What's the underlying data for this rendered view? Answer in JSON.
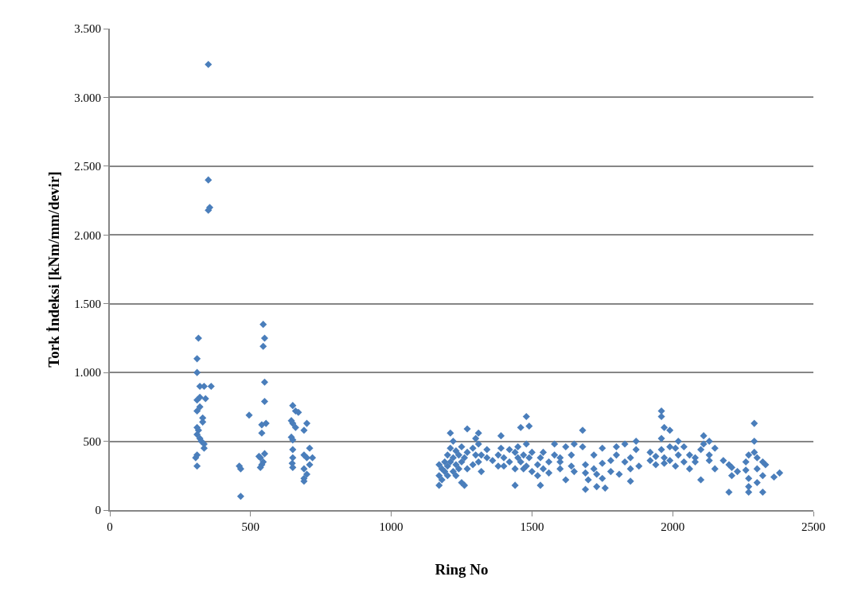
{
  "chart_data": {
    "type": "scatter",
    "xlabel": "Ring No",
    "ylabel": "Tork İndeksi [kNm/mm/devir]",
    "xlim": [
      0,
      2500
    ],
    "xticks": [
      0,
      500,
      1000,
      1500,
      2000,
      2500
    ],
    "ylim": [
      0,
      3500
    ],
    "yticks": [
      0,
      500,
      {
        "value": 1000,
        "label": "1.000"
      },
      {
        "value": 1500,
        "label": "1.500"
      },
      {
        "value": 2000,
        "label": "2.000"
      },
      {
        "value": 2500,
        "label": "2.500"
      },
      {
        "value": 3000,
        "label": "3.000"
      },
      {
        "value": 3500,
        "label": "3.500"
      }
    ],
    "grid": "y",
    "marker": "diamond",
    "series": [
      {
        "color": "#4a7ebb",
        "x": [
          350,
          350,
          355,
          350,
          315,
          310,
          310,
          320,
          335,
          360,
          320,
          310,
          340,
          320,
          310,
          330,
          330,
          310,
          315,
          310,
          320,
          325,
          335,
          335,
          310,
          305,
          310,
          460,
          465,
          465,
          495,
          545,
          550,
          545,
          550,
          550,
          555,
          540,
          540,
          550,
          530,
          535,
          545,
          540,
          535,
          650,
          660,
          670,
          645,
          650,
          660,
          645,
          650,
          650,
          650,
          648,
          650,
          700,
          690,
          710,
          690,
          700,
          720,
          710,
          690,
          700,
          690,
          690,
          1170,
          1170,
          1170,
          1180,
          1180,
          1190,
          1190,
          1200,
          1200,
          1200,
          1210,
          1210,
          1210,
          1220,
          1220,
          1220,
          1230,
          1230,
          1230,
          1240,
          1240,
          1250,
          1250,
          1250,
          1260,
          1260,
          1270,
          1270,
          1270,
          1290,
          1290,
          1300,
          1300,
          1310,
          1310,
          1310,
          1320,
          1320,
          1340,
          1340,
          1360,
          1380,
          1380,
          1390,
          1390,
          1400,
          1400,
          1420,
          1420,
          1440,
          1440,
          1440,
          1450,
          1450,
          1460,
          1460,
          1470,
          1470,
          1480,
          1480,
          1480,
          1490,
          1490,
          1500,
          1500,
          1520,
          1520,
          1530,
          1530,
          1540,
          1540,
          1560,
          1560,
          1580,
          1580,
          1600,
          1600,
          1600,
          1620,
          1620,
          1640,
          1640,
          1650,
          1650,
          1680,
          1680,
          1690,
          1690,
          1690,
          1700,
          1720,
          1720,
          1730,
          1730,
          1750,
          1750,
          1750,
          1760,
          1780,
          1780,
          1800,
          1800,
          1810,
          1830,
          1830,
          1850,
          1850,
          1850,
          1870,
          1870,
          1880,
          1920,
          1920,
          1940,
          1940,
          1960,
          1960,
          1960,
          1960,
          1970,
          1970,
          1970,
          1990,
          1990,
          1990,
          2010,
          2010,
          2020,
          2020,
          2040,
          2040,
          2060,
          2060,
          2080,
          2080,
          2100,
          2100,
          2110,
          2110,
          2130,
          2130,
          2130,
          2150,
          2150,
          2180,
          2200,
          2200,
          2210,
          2210,
          2230,
          2260,
          2260,
          2270,
          2270,
          2270,
          2270,
          2290,
          2290,
          2290,
          2300,
          2300,
          2300,
          2320,
          2320,
          2320,
          2330,
          2360,
          2380
        ],
        "values": [
          3240,
          2400,
          2200,
          2180,
          1250,
          1100,
          1000,
          900,
          900,
          900,
          820,
          800,
          810,
          750,
          720,
          670,
          640,
          600,
          580,
          550,
          520,
          500,
          480,
          450,
          400,
          380,
          320,
          320,
          300,
          100,
          690,
          1350,
          1250,
          1190,
          930,
          790,
          630,
          620,
          560,
          410,
          390,
          380,
          350,
          330,
          310,
          760,
          720,
          710,
          650,
          630,
          600,
          530,
          510,
          440,
          380,
          340,
          310,
          630,
          580,
          450,
          400,
          380,
          380,
          330,
          300,
          260,
          230,
          210,
          180,
          250,
          330,
          220,
          300,
          280,
          350,
          400,
          250,
          320,
          560,
          450,
          350,
          500,
          380,
          280,
          430,
          330,
          250,
          400,
          300,
          460,
          350,
          200,
          380,
          180,
          590,
          420,
          300,
          450,
          330,
          520,
          400,
          560,
          480,
          350,
          400,
          280,
          440,
          380,
          360,
          400,
          320,
          540,
          450,
          380,
          320,
          440,
          350,
          180,
          420,
          300,
          460,
          380,
          600,
          350,
          300,
          400,
          680,
          480,
          320,
          610,
          380,
          280,
          420,
          330,
          250,
          380,
          180,
          300,
          420,
          350,
          270,
          480,
          400,
          300,
          380,
          350,
          220,
          460,
          400,
          320,
          480,
          280,
          580,
          460,
          270,
          330,
          150,
          220,
          300,
          400,
          170,
          260,
          340,
          450,
          230,
          160,
          280,
          360,
          460,
          400,
          260,
          480,
          350,
          380,
          300,
          210,
          500,
          440,
          320,
          420,
          360,
          390,
          330,
          720,
          680,
          520,
          440,
          600,
          380,
          340,
          580,
          460,
          360,
          450,
          320,
          500,
          400,
          460,
          350,
          400,
          300,
          380,
          350,
          440,
          220,
          540,
          480,
          500,
          400,
          360,
          450,
          300,
          360,
          330,
          130,
          310,
          250,
          280,
          350,
          290,
          400,
          170,
          230,
          130,
          630,
          500,
          420,
          380,
          300,
          200,
          350,
          250,
          130,
          330,
          240,
          270
        ]
      }
    ]
  }
}
